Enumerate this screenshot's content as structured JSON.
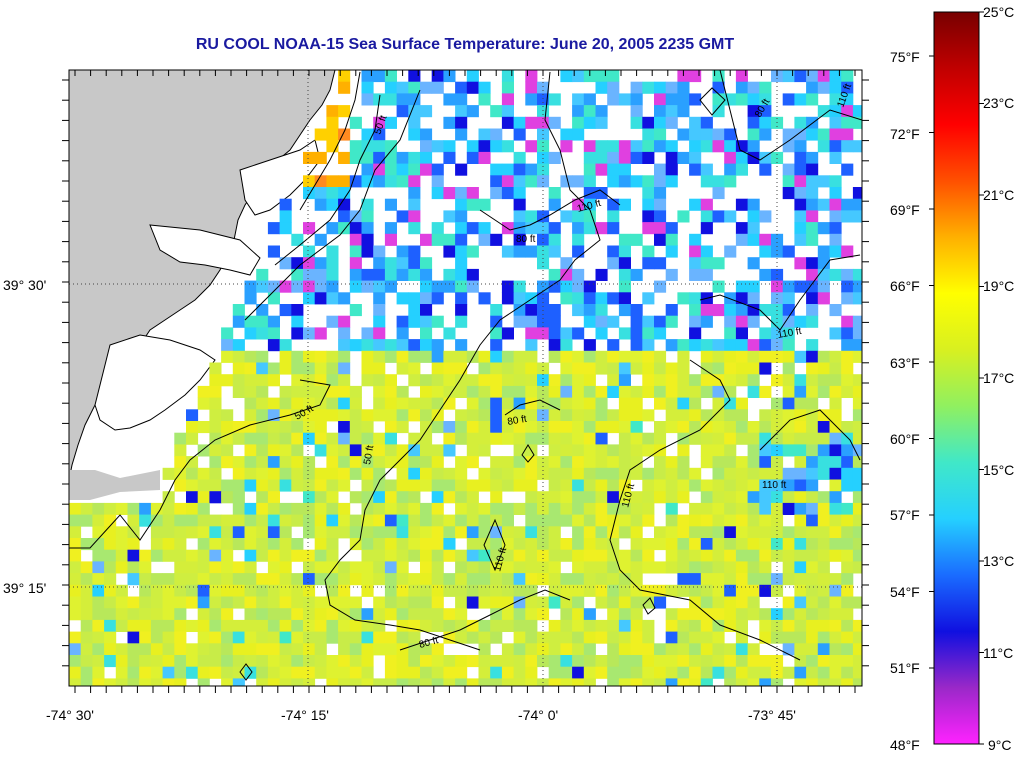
{
  "title": "RU COOL  NOAA-15  Sea Surface Temperature:  June 20, 2005 2235 GMT",
  "axes": {
    "x_ticks": [
      "-74° 30'",
      "-74° 15'",
      "-74° 0'",
      "-73° 45'"
    ],
    "y_ticks": [
      "39° 30'",
      "39° 15'"
    ]
  },
  "contours": {
    "labels": [
      "50 ft",
      "80 ft",
      "110 ft",
      "110 ft",
      "80 ft",
      "50 ft",
      "80 ft",
      "110 ft",
      "110 ft",
      "110 ft",
      "110 ft",
      "80 ft",
      "50 ft"
    ]
  },
  "colorbar": {
    "f_labels": [
      "75°F",
      "72°F",
      "69°F",
      "66°F",
      "63°F",
      "60°F",
      "57°F",
      "54°F",
      "51°F",
      "48°F"
    ],
    "c_labels": [
      "25°C",
      "23°C",
      "21°C",
      "19°C",
      "17°C",
      "15°C",
      "13°C",
      "11°C",
      "9°C"
    ],
    "stops": [
      "#ff22ff",
      "#9a28c8",
      "#1010e0",
      "#1a6cff",
      "#25d0ff",
      "#40e8c8",
      "#90f060",
      "#d8f020",
      "#ffff00",
      "#ffb000",
      "#ff5000",
      "#ff0000",
      "#c00000",
      "#780000"
    ]
  },
  "colors": {
    "land": "#c8c8c8",
    "warm": "#d4ee3a",
    "cool": "#1e60ff",
    "title": "#1a1aa0"
  }
}
